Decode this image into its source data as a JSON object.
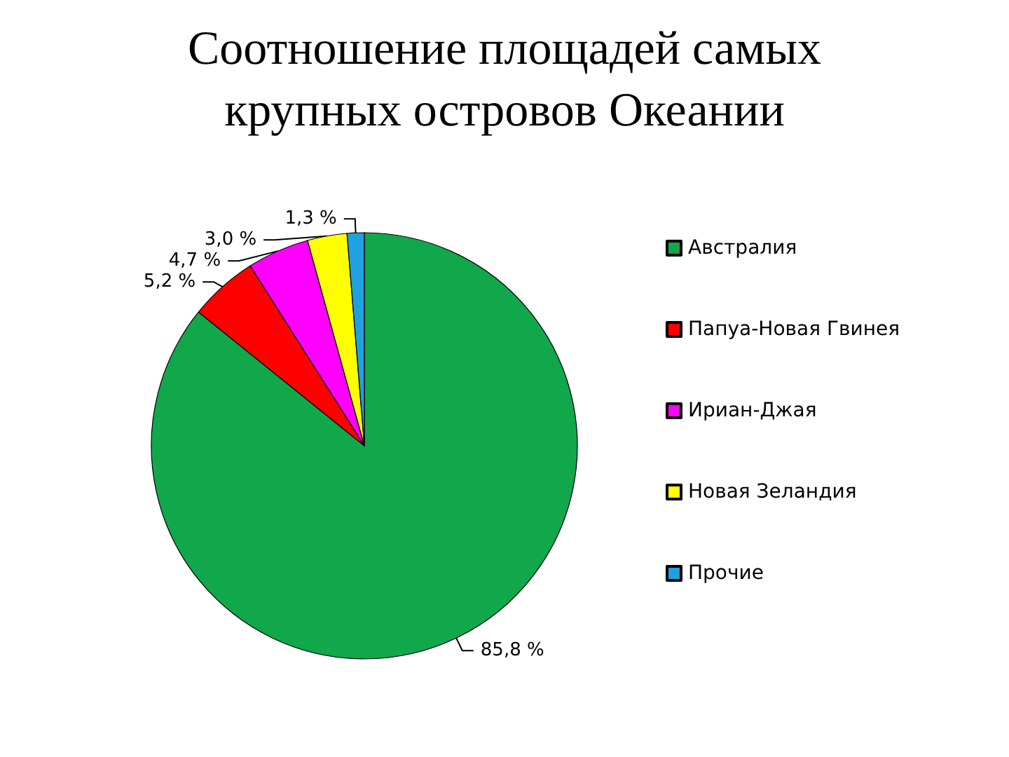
{
  "chart_data": {
    "type": "pie",
    "title": "Соотношение площадей самых крупных островов Океании",
    "categories": [
      "Австралия",
      "Папуа-Новая Гвинея",
      "Ириан-Джая",
      "Новая Зеландия",
      "Прочие"
    ],
    "values": [
      85.8,
      5.2,
      4.7,
      3.0,
      1.3
    ],
    "colors": [
      "#10a84a",
      "#ff0000",
      "#ff00ff",
      "#ffff00",
      "#1fa0e0"
    ],
    "value_labels": [
      "85,8 %",
      "5,2 %",
      "4,7 %",
      "3,0 %",
      "1,3 %"
    ],
    "legend": "right"
  }
}
